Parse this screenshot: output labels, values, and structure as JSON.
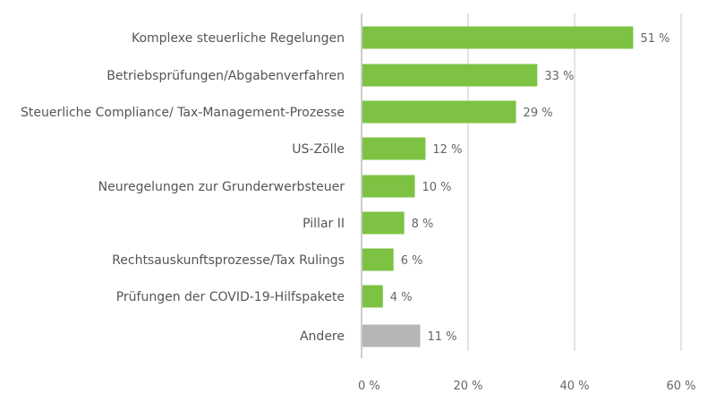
{
  "chart_data": {
    "type": "bar",
    "orientation": "horizontal",
    "categories": [
      "Komplexe steuerliche Regelungen",
      "Betriebsprüfungen/Abgabenverfahren",
      "Steuerliche Compliance/ Tax-Management-Prozesse",
      "US-Zölle",
      "Neuregelungen zur Grunderwerbsteuer",
      "Pillar II",
      "Rechtsauskunftsprozesse/Tax Rulings",
      "Prüfungen der COVID-19-Hilfspakete",
      "Andere"
    ],
    "values": [
      51,
      33,
      29,
      12,
      10,
      8,
      6,
      4,
      11
    ],
    "data_labels": [
      "51 %",
      "33 %",
      "29 %",
      "12 %",
      "10 %",
      "8 %",
      "6 %",
      "4 %",
      "11 %"
    ],
    "bar_colors": [
      "#7dc242",
      "#7dc242",
      "#7dc242",
      "#7dc242",
      "#7dc242",
      "#7dc242",
      "#7dc242",
      "#7dc242",
      "#b4b6b8"
    ],
    "xlim": [
      0,
      60
    ],
    "xticks": [
      0,
      20,
      40,
      60
    ],
    "xtick_labels": [
      "0 %",
      "20 %",
      "40 %",
      "60 %"
    ],
    "grid": true,
    "title": "",
    "xlabel": "",
    "ylabel": ""
  }
}
